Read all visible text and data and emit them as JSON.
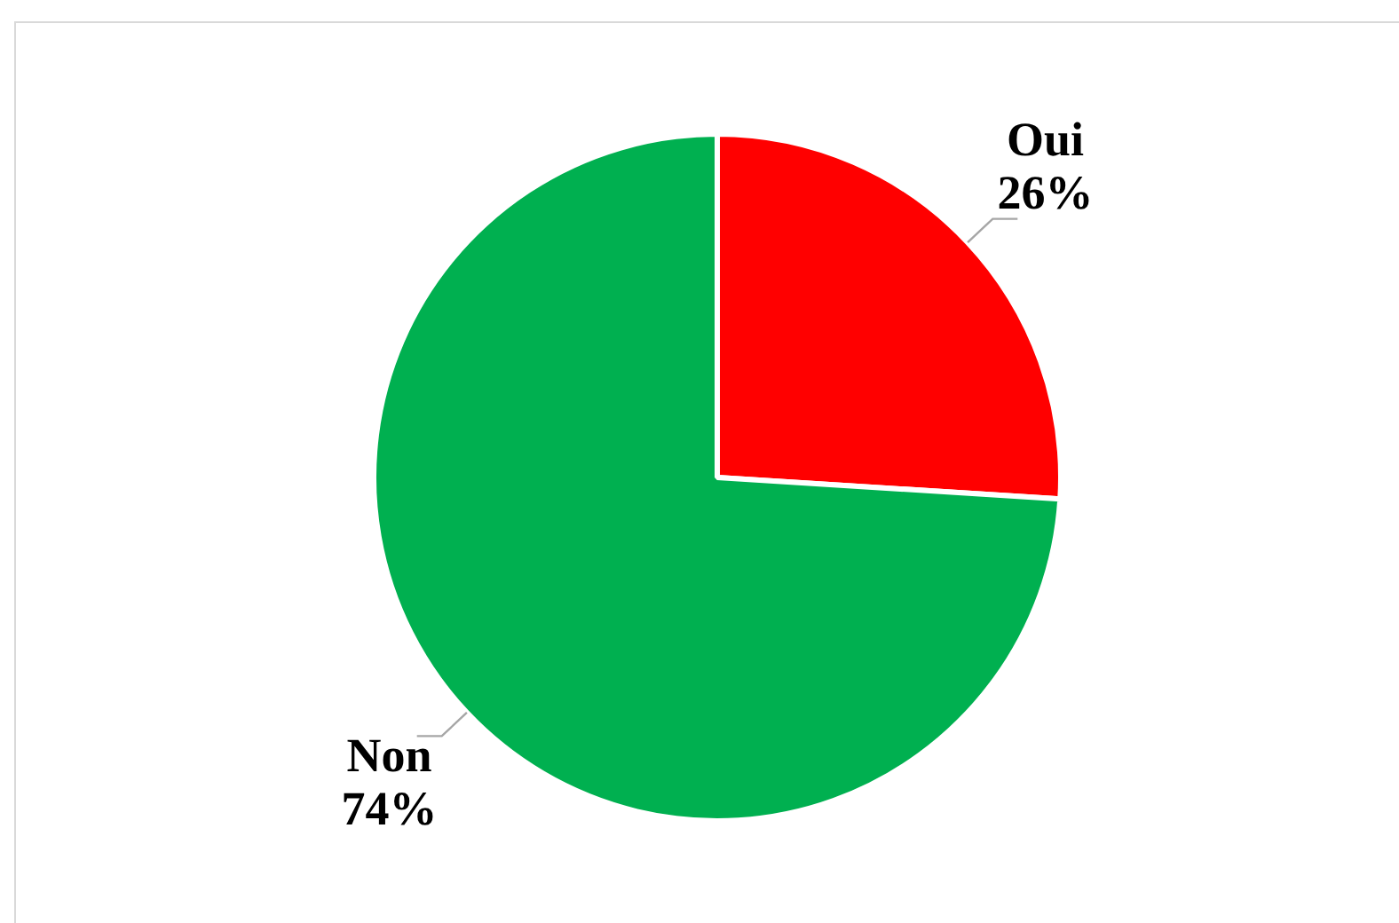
{
  "chart_data": {
    "type": "pie",
    "categories": [
      "Oui",
      "Non"
    ],
    "values": [
      26,
      74
    ],
    "colors": [
      "#ff0000",
      "#00b050"
    ],
    "value_labels": [
      "26%",
      "74%"
    ],
    "legend": false
  }
}
